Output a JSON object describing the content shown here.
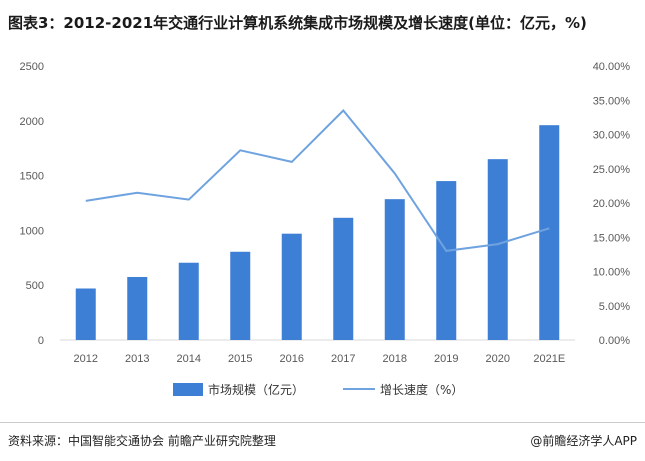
{
  "header": {
    "title": "图表3：2012-2021年交通行业计算机系统集成市场规模及增长速度(单位：亿元，%)"
  },
  "chart_data": {
    "type": "bar",
    "title": "图表3：2012-2021年交通行业计算机系统集成市场规模及增长速度(单位：亿元，%)",
    "categories": [
      "2012",
      "2013",
      "2014",
      "2015",
      "2016",
      "2017",
      "2018",
      "2019",
      "2020",
      "2021E"
    ],
    "series": [
      {
        "name": "市场规模（亿元）",
        "type": "bar",
        "axis": "left",
        "color": "#3e7fd6",
        "values": [
          470,
          575,
          705,
          805,
          970,
          1115,
          1285,
          1450,
          1650,
          1960
        ]
      },
      {
        "name": "增长速度（%）",
        "type": "line",
        "axis": "right",
        "color": "#6fa3e0",
        "values": [
          20.3,
          21.5,
          20.5,
          27.7,
          26.0,
          33.5,
          24.3,
          13.0,
          14.0,
          16.3
        ]
      }
    ],
    "left_axis": {
      "min": 0,
      "max": 2500,
      "ticks": [
        "0",
        "500",
        "1000",
        "1500",
        "2000",
        "2500"
      ]
    },
    "right_axis": {
      "min": 0,
      "max": 40,
      "ticks": [
        "0.00%",
        "5.00%",
        "10.00%",
        "15.00%",
        "20.00%",
        "25.00%",
        "30.00%",
        "35.00%",
        "40.00%"
      ]
    },
    "grid": false,
    "legend_position": "bottom"
  },
  "footer": {
    "source": "资料来源：中国智能交通协会 前瞻产业研究院整理",
    "credit": "@前瞻经济学人APP"
  }
}
